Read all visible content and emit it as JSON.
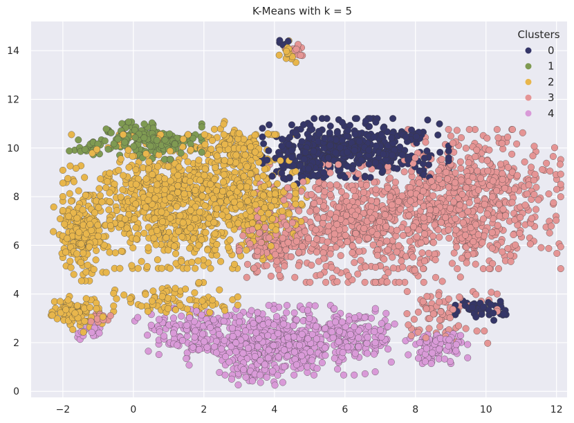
{
  "chart_data": {
    "type": "scatter",
    "title": "K-Means with k = 5",
    "xlabel": "",
    "ylabel": "",
    "xlim": [
      -2.9,
      12.3
    ],
    "ylim": [
      -0.25,
      15.2
    ],
    "xticks": [
      "−2",
      "0",
      "2",
      "4",
      "6",
      "8",
      "10",
      "12"
    ],
    "xtick_values": [
      -2,
      0,
      2,
      4,
      6,
      8,
      10,
      12
    ],
    "yticks": [
      "0",
      "2",
      "4",
      "6",
      "8",
      "10",
      "12",
      "14"
    ],
    "ytick_values": [
      0,
      2,
      4,
      6,
      8,
      10,
      12,
      14
    ],
    "grid": true,
    "legend": {
      "title": "Clusters",
      "placement": "top-right"
    },
    "series": [
      {
        "name": "0",
        "color": "#353668",
        "blobs": [
          {
            "cx": 6.3,
            "cy": 10.0,
            "sx": 1.2,
            "sy": 0.55,
            "n": 420
          },
          {
            "cx": 4.7,
            "cy": 9.3,
            "sx": 0.4,
            "sy": 0.35,
            "n": 60
          },
          {
            "cx": 9.9,
            "cy": 3.4,
            "sx": 0.35,
            "sy": 0.22,
            "n": 40
          },
          {
            "cx": 4.3,
            "cy": 14.3,
            "sx": 0.08,
            "sy": 0.08,
            "n": 5
          }
        ]
      },
      {
        "name": "1",
        "color": "#7f9a52",
        "blobs": [
          {
            "cx": 0.4,
            "cy": 10.3,
            "sx": 0.7,
            "sy": 0.35,
            "n": 180
          },
          {
            "cx": -1.2,
            "cy": 10.0,
            "sx": 0.3,
            "sy": 0.2,
            "n": 20
          }
        ]
      },
      {
        "name": "2",
        "color": "#e8b64c",
        "blobs": [
          {
            "cx": 1.3,
            "cy": 7.8,
            "sx": 1.5,
            "sy": 1.25,
            "n": 900
          },
          {
            "cx": 2.9,
            "cy": 10.0,
            "sx": 0.5,
            "sy": 0.5,
            "n": 120
          },
          {
            "cx": 3.6,
            "cy": 7.5,
            "sx": 0.6,
            "sy": 0.9,
            "n": 150
          },
          {
            "cx": -1.5,
            "cy": 6.3,
            "sx": 0.35,
            "sy": 0.8,
            "n": 150
          },
          {
            "cx": -1.6,
            "cy": 3.2,
            "sx": 0.35,
            "sy": 0.35,
            "n": 90
          },
          {
            "cx": 1.2,
            "cy": 3.7,
            "sx": 0.8,
            "sy": 0.35,
            "n": 80
          },
          {
            "cx": 4.4,
            "cy": 14.0,
            "sx": 0.12,
            "sy": 0.22,
            "n": 20
          }
        ]
      },
      {
        "name": "3",
        "color": "#e59595",
        "blobs": [
          {
            "cx": 6.6,
            "cy": 6.9,
            "sx": 1.4,
            "sy": 1.1,
            "n": 650
          },
          {
            "cx": 9.7,
            "cy": 7.9,
            "sx": 1.1,
            "sy": 1.3,
            "n": 550
          },
          {
            "cx": 4.1,
            "cy": 6.0,
            "sx": 0.5,
            "sy": 0.6,
            "n": 120
          },
          {
            "cx": 9.0,
            "cy": 3.2,
            "sx": 0.6,
            "sy": 0.7,
            "n": 80
          },
          {
            "cx": 4.6,
            "cy": 14.0,
            "sx": 0.12,
            "sy": 0.15,
            "n": 15
          },
          {
            "cx": -1.0,
            "cy": 3.0,
            "sx": 0.2,
            "sy": 0.2,
            "n": 15
          }
        ]
      },
      {
        "name": "4",
        "color": "#d99ad8",
        "blobs": [
          {
            "cx": 4.0,
            "cy": 2.1,
            "sx": 1.3,
            "sy": 0.65,
            "n": 500
          },
          {
            "cx": 1.8,
            "cy": 2.5,
            "sx": 0.8,
            "sy": 0.45,
            "n": 120
          },
          {
            "cx": 6.3,
            "cy": 2.3,
            "sx": 0.6,
            "sy": 0.5,
            "n": 120
          },
          {
            "cx": 8.6,
            "cy": 1.8,
            "sx": 0.4,
            "sy": 0.3,
            "n": 90
          },
          {
            "cx": 3.5,
            "cy": 0.8,
            "sx": 0.5,
            "sy": 0.25,
            "n": 40
          },
          {
            "cx": -1.3,
            "cy": 2.4,
            "sx": 0.2,
            "sy": 0.2,
            "n": 15
          }
        ]
      }
    ]
  }
}
